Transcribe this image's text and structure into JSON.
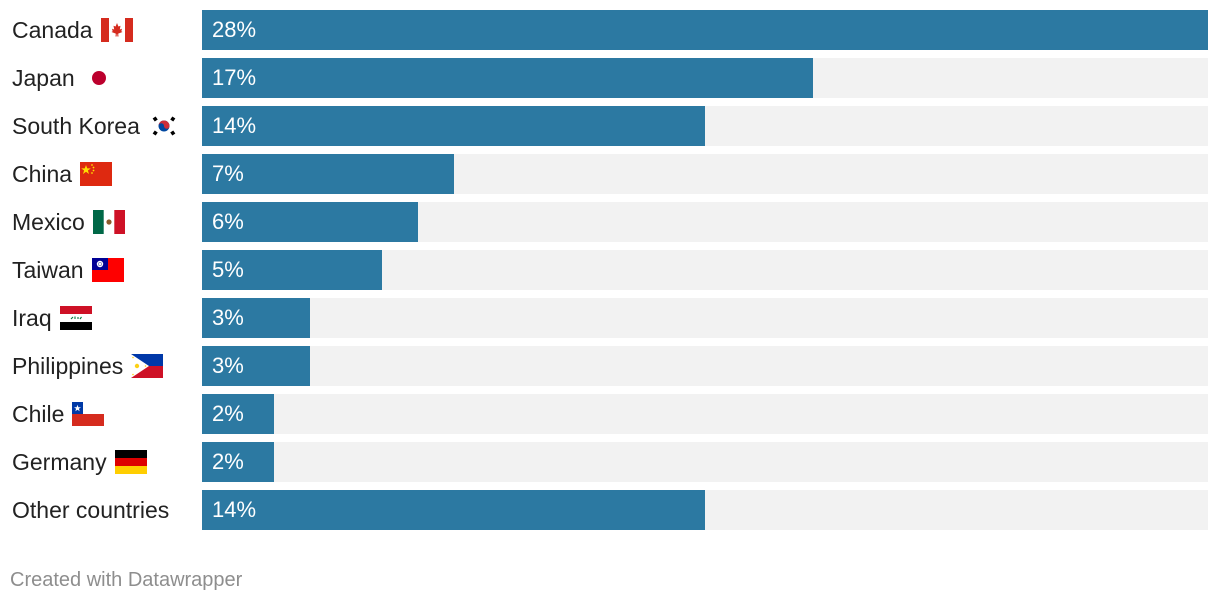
{
  "chart_data": {
    "type": "bar",
    "orientation": "horizontal",
    "categories": [
      "Canada",
      "Japan",
      "South Korea",
      "China",
      "Mexico",
      "Taiwan",
      "Iraq",
      "Philippines",
      "Chile",
      "Germany",
      "Other countries"
    ],
    "values": [
      28,
      17,
      14,
      7,
      6,
      5,
      3,
      3,
      2,
      2,
      14
    ],
    "value_labels": [
      "28%",
      "17%",
      "14%",
      "7%",
      "6%",
      "5%",
      "3%",
      "3%",
      "2%",
      "2%",
      "14%"
    ],
    "flags": [
      "canada-flag",
      "japan-flag",
      "south-korea-flag",
      "china-flag",
      "mexico-flag",
      "taiwan-flag",
      "iraq-flag",
      "philippines-flag",
      "chile-flag",
      "germany-flag",
      null
    ],
    "xlim": [
      0,
      28
    ],
    "bar_color": "#2c79a2",
    "track_color": "#f2f2f2"
  },
  "footer": {
    "credit": "Created with Datawrapper"
  }
}
